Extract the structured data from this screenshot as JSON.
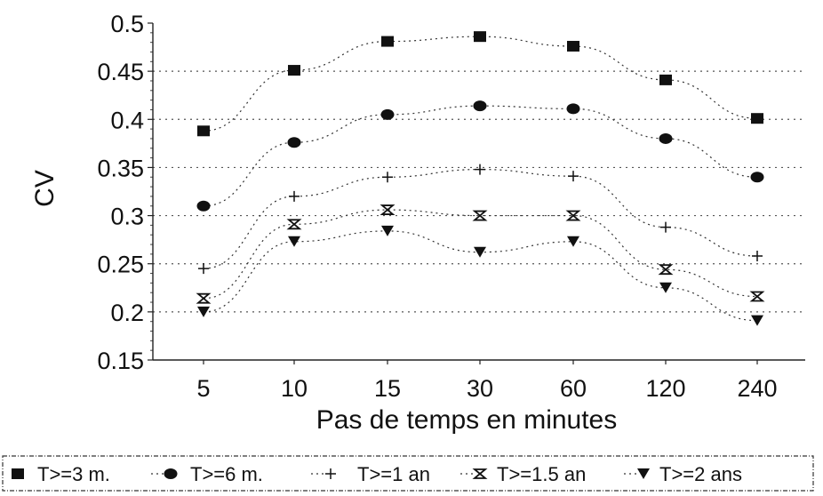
{
  "chart_data": {
    "type": "line",
    "categories": [
      "5",
      "10",
      "15",
      "30",
      "60",
      "120",
      "240"
    ],
    "xlabel": "Pas de temps en minutes",
    "ylabel": "CV",
    "ylim": [
      0.15,
      0.5
    ],
    "yticks": [
      "0.15",
      "0.2",
      "0.25",
      "0.3",
      "0.35",
      "0.4",
      "0.45",
      "0.5"
    ],
    "grid": "horizontal dotted",
    "legend_position": "bottom",
    "series": [
      {
        "name": "T>=3 m.",
        "marker": "square",
        "values": [
          0.388,
          0.451,
          0.481,
          0.486,
          0.476,
          0.441,
          0.401
        ]
      },
      {
        "name": "T>=6 m.",
        "marker": "circle",
        "values": [
          0.31,
          0.376,
          0.405,
          0.414,
          0.411,
          0.38,
          0.34
        ]
      },
      {
        "name": "T>=1 an",
        "marker": "plus",
        "values": [
          0.245,
          0.32,
          0.34,
          0.348,
          0.341,
          0.288,
          0.258
        ]
      },
      {
        "name": "T>=1.5 an",
        "marker": "hourglass",
        "values": [
          0.214,
          0.291,
          0.306,
          0.3,
          0.3,
          0.244,
          0.216
        ]
      },
      {
        "name": "T>=2 ans",
        "marker": "triangle-down",
        "values": [
          0.2,
          0.273,
          0.284,
          0.262,
          0.273,
          0.225,
          0.191
        ]
      }
    ]
  }
}
